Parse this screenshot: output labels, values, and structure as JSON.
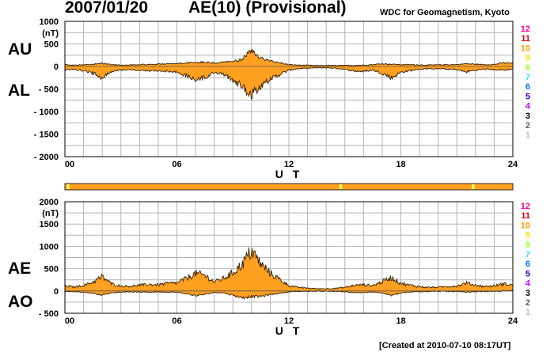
{
  "header": {
    "date": "2007/01/20",
    "title": "AE(10) (Provisional)",
    "source": "WDC for Geomagnetism, Kyoto"
  },
  "footer": "[Created at 2010-07-10 08:17UT]",
  "colors": {
    "fill": "#ffa020",
    "outline": "#3a2200",
    "grid": "#b4b4b4",
    "bar": "#ffa020",
    "bar_marker": "#ffff60"
  },
  "chart_data": [
    {
      "type": "area",
      "panel": "top",
      "labels": [
        "AU",
        "AL"
      ],
      "xlabel": "U T",
      "unit": "(nT)",
      "xlim": [
        0,
        24
      ],
      "ylim": [
        -2000,
        1000
      ],
      "xticks": [
        "00",
        "06",
        "12",
        "18",
        "24"
      ],
      "yticks": [
        "1000",
        "500",
        "0",
        "- 500",
        "- 1000",
        "- 1500",
        "- 2000"
      ],
      "series": [
        {
          "name": "AU",
          "x": [
            0,
            0.5,
            1,
            1.5,
            2,
            2.5,
            3,
            3.5,
            4,
            4.5,
            5,
            5.5,
            6,
            6.5,
            7,
            7.5,
            8,
            8.5,
            9,
            9.5,
            10,
            10.5,
            11,
            11.5,
            12,
            12.5,
            13,
            13.5,
            14,
            14.5,
            15,
            15.5,
            16,
            16.5,
            17,
            17.5,
            18,
            18.5,
            19,
            19.5,
            20,
            20.5,
            21,
            21.5,
            22,
            22.5,
            23,
            23.5,
            24
          ],
          "values": [
            40,
            30,
            35,
            50,
            70,
            40,
            30,
            35,
            40,
            45,
            50,
            60,
            60,
            80,
            90,
            100,
            70,
            100,
            110,
            150,
            350,
            180,
            120,
            80,
            40,
            30,
            25,
            20,
            20,
            20,
            20,
            25,
            30,
            40,
            60,
            50,
            40,
            40,
            35,
            30,
            35,
            40,
            40,
            60,
            50,
            40,
            45,
            80,
            70
          ]
        },
        {
          "name": "AL",
          "x": [
            0,
            0.5,
            1,
            1.5,
            2,
            2.5,
            3,
            3.5,
            4,
            4.5,
            5,
            5.5,
            6,
            6.5,
            7,
            7.5,
            8,
            8.5,
            9,
            9.5,
            10,
            10.5,
            11,
            11.5,
            12,
            12.5,
            13,
            13.5,
            14,
            14.5,
            15,
            15.5,
            16,
            16.5,
            17,
            17.5,
            18,
            18.5,
            19,
            19.5,
            20,
            20.5,
            21,
            21.5,
            22,
            22.5,
            23,
            23.5,
            24
          ],
          "values": [
            -70,
            -60,
            -90,
            -150,
            -250,
            -120,
            -80,
            -70,
            -90,
            -100,
            -90,
            -110,
            -120,
            -200,
            -300,
            -250,
            -130,
            -180,
            -300,
            -450,
            -600,
            -420,
            -280,
            -180,
            -80,
            -50,
            -40,
            -30,
            -30,
            -40,
            -60,
            -100,
            -110,
            -80,
            -150,
            -250,
            -130,
            -90,
            -60,
            -50,
            -50,
            -60,
            -70,
            -120,
            -80,
            -60,
            -70,
            -80,
            -60
          ]
        }
      ]
    },
    {
      "type": "area",
      "panel": "bottom",
      "labels": [
        "AE",
        "AO"
      ],
      "xlabel": "U T",
      "unit": "(nT)",
      "xlim": [
        0,
        24
      ],
      "ylim": [
        -500,
        2000
      ],
      "xticks": [
        "00",
        "06",
        "12",
        "18",
        "24"
      ],
      "yticks": [
        "2000",
        "1500",
        "1000",
        "500",
        "0",
        "- 500"
      ],
      "series": [
        {
          "name": "AE",
          "x": [
            0,
            0.5,
            1,
            1.5,
            2,
            2.5,
            3,
            3.5,
            4,
            4.5,
            5,
            5.5,
            6,
            6.5,
            7,
            7.5,
            8,
            8.5,
            9,
            9.5,
            10,
            10.5,
            11,
            11.5,
            12,
            12.5,
            13,
            13.5,
            14,
            14.5,
            15,
            15.5,
            16,
            16.5,
            17,
            17.5,
            18,
            18.5,
            19,
            19.5,
            20,
            20.5,
            21,
            21.5,
            22,
            22.5,
            23,
            23.5,
            24
          ],
          "values": [
            110,
            90,
            125,
            200,
            320,
            160,
            110,
            105,
            130,
            145,
            140,
            170,
            180,
            280,
            390,
            350,
            200,
            280,
            410,
            600,
            900,
            600,
            400,
            260,
            120,
            80,
            65,
            50,
            50,
            60,
            80,
            125,
            140,
            120,
            210,
            300,
            170,
            130,
            95,
            80,
            85,
            100,
            110,
            180,
            130,
            100,
            115,
            160,
            130
          ]
        },
        {
          "name": "AO",
          "x": [
            0,
            0.5,
            1,
            1.5,
            2,
            2.5,
            3,
            3.5,
            4,
            4.5,
            5,
            5.5,
            6,
            6.5,
            7,
            7.5,
            8,
            8.5,
            9,
            9.5,
            10,
            10.5,
            11,
            11.5,
            12,
            12.5,
            13,
            13.5,
            14,
            14.5,
            15,
            15.5,
            16,
            16.5,
            17,
            17.5,
            18,
            18.5,
            19,
            19.5,
            20,
            20.5,
            21,
            21.5,
            22,
            22.5,
            23,
            23.5,
            24
          ],
          "values": [
            -15,
            -15,
            -28,
            -50,
            -90,
            -40,
            -25,
            -18,
            -25,
            -28,
            -20,
            -25,
            -30,
            -60,
            -105,
            -75,
            -30,
            -40,
            -95,
            -150,
            -125,
            -120,
            -80,
            -50,
            -20,
            -10,
            -8,
            -5,
            -5,
            -10,
            -20,
            -38,
            -40,
            -20,
            -45,
            -100,
            -45,
            -25,
            -13,
            -10,
            -8,
            -10,
            -15,
            -30,
            -15,
            -10,
            -13,
            0,
            5
          ]
        }
      ]
    }
  ],
  "station_count_legend": [
    "12",
    "11",
    "10",
    "9",
    "8",
    "7",
    "6",
    "5",
    "4",
    "3",
    "2",
    "1"
  ],
  "station_count_colors": [
    "#ff0090",
    "#e00000",
    "#ffa000",
    "#ffe000",
    "#a0ff30",
    "#30e0ff",
    "#0070ff",
    "#3000c0",
    "#c000ff",
    "#000000",
    "#606060",
    "#c0c0c0"
  ],
  "station_bar": {
    "base_count": "10",
    "markers": [
      {
        "start": 0.1,
        "end": 0.25,
        "count": "9"
      },
      {
        "start": 14.7,
        "end": 14.85,
        "count": "9"
      },
      {
        "start": 21.8,
        "end": 21.95,
        "count": "9"
      }
    ]
  }
}
